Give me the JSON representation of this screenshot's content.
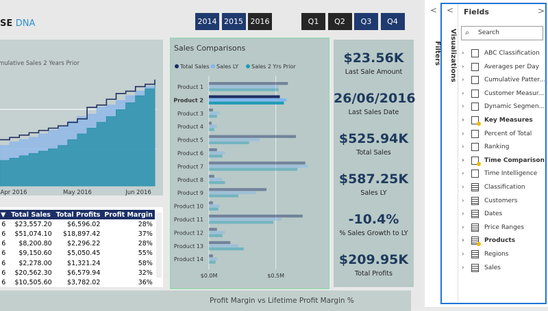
{
  "logo": {
    "prefix": "SE",
    "suffix": "DNA"
  },
  "year_buttons": [
    "2014",
    "2015",
    "2016"
  ],
  "quarter_buttons": [
    "Q1",
    "Q2",
    "Q3",
    "Q4"
  ],
  "chart_data": [
    {
      "type": "area",
      "title": "mulative Sales 2 Years Prior",
      "x_labels": [
        "Apr 2016",
        "May 2016",
        "Jun 2016"
      ],
      "ylim": [
        0,
        100
      ],
      "series": [
        {
          "color": "#8fb8e8",
          "values": [
            35,
            38,
            40,
            42,
            45,
            48,
            52,
            56,
            60,
            62,
            68,
            70,
            74,
            78,
            82,
            86,
            90
          ]
        },
        {
          "color": "#2e93ad",
          "values": [
            22,
            24,
            26,
            28,
            30,
            32,
            35,
            40,
            45,
            50,
            55,
            60,
            66,
            72,
            78,
            84,
            88
          ]
        },
        {
          "color": "#1f2f5e",
          "values": [
            40,
            42,
            44,
            46,
            48,
            50,
            52,
            55,
            58,
            68,
            70,
            75,
            80,
            82,
            86,
            88,
            92
          ]
        }
      ]
    },
    {
      "type": "bar",
      "title": "Sales Comparisons",
      "categories": [
        "Product 1",
        "Product 2",
        "Product 3",
        "Product 4",
        "Product 5",
        "Product 6",
        "Product 7",
        "Product 8",
        "Product 9",
        "Product 10",
        "Product 11",
        "Product 12",
        "Product 13",
        "Product 14"
      ],
      "highlight": 1,
      "series": [
        {
          "name": "Total Sales",
          "color": "#1c2f66",
          "values": [
            0.59,
            0.53,
            0.03,
            0.02,
            0.65,
            0.06,
            0.72,
            0.04,
            0.43,
            0.03,
            0.7,
            0.06,
            0.16,
            0.03
          ]
        },
        {
          "name": "Sales LY",
          "color": "#7fb6f0",
          "values": [
            0.52,
            0.58,
            0.08,
            0.06,
            0.38,
            0.12,
            0.74,
            0.1,
            0.35,
            0.08,
            0.54,
            0.12,
            0.22,
            0.06
          ]
        },
        {
          "name": "Sales 2 Yrs Prior",
          "color": "#1e9bb5",
          "values": [
            0.52,
            0.56,
            0.06,
            0.04,
            0.3,
            0.1,
            0.66,
            0.12,
            0.22,
            0.07,
            0.48,
            0.1,
            0.26,
            0.05
          ]
        }
      ],
      "xlim": [
        0,
        0.87
      ],
      "xticks": [
        {
          "value": 0,
          "label": "$0.0M"
        },
        {
          "value": 0.5,
          "label": "$0.5M"
        }
      ]
    }
  ],
  "table": {
    "columns": [
      "Total Sales",
      "Total Profits",
      "Profit Margin"
    ],
    "rows": [
      [
        "6",
        "$23,557.20",
        "$6,596.02",
        "28%"
      ],
      [
        "6",
        "$51,074.10",
        "$18,897.42",
        "37%"
      ],
      [
        "6",
        "$8,200.80",
        "$2,296.22",
        "28%"
      ],
      [
        "6",
        "$9,150.60",
        "$5,050.45",
        "55%"
      ],
      [
        "6",
        "$2,278.00",
        "$1,321.24",
        "58%"
      ],
      [
        "6",
        "$20,562.30",
        "$6,579.94",
        "32%"
      ],
      [
        "6",
        "$10,505.60",
        "$3,782.02",
        "36%"
      ]
    ]
  },
  "cards": [
    {
      "value": "$23.56K",
      "label": "Last Sale Amount"
    },
    {
      "value": "26/06/2016",
      "label": "Last Sales Date"
    },
    {
      "value": "$525.94K",
      "label": "Total Sales"
    },
    {
      "value": "$587.25K",
      "label": "Sales LY"
    },
    {
      "value": "-10.4%",
      "label": "% Sales Growth to LY"
    },
    {
      "value": "$209.95K",
      "label": "Total Profits"
    }
  ],
  "bottom_title": "Profit Margin vs Lifetime Profit Margin %",
  "pane": {
    "filters": "Filters",
    "visualizations": "Visualizations",
    "fields_title": "Fields",
    "search": "Search",
    "fields": [
      {
        "label": "ABC Classification",
        "kind": "measure"
      },
      {
        "label": "Averages per Day",
        "kind": "measure"
      },
      {
        "label": "Cumulative Patter...",
        "kind": "measure"
      },
      {
        "label": "Customer Measur...",
        "kind": "measure"
      },
      {
        "label": "Dynamic Segmen...",
        "kind": "measure"
      },
      {
        "label": "Key Measures",
        "kind": "measure",
        "bold": true
      },
      {
        "label": "Percent of Total",
        "kind": "measure"
      },
      {
        "label": "Ranking",
        "kind": "measure"
      },
      {
        "label": "Time Comparison",
        "kind": "measure",
        "bold": true
      },
      {
        "label": "Time Intelligence",
        "kind": "measure"
      },
      {
        "label": "Classification",
        "kind": "table"
      },
      {
        "label": "Customers",
        "kind": "table"
      },
      {
        "label": "Dates",
        "kind": "table"
      },
      {
        "label": "Price Ranges",
        "kind": "table"
      },
      {
        "label": "Products",
        "kind": "table",
        "bold": true
      },
      {
        "label": "Regions",
        "kind": "table"
      },
      {
        "label": "Sales",
        "kind": "table"
      }
    ]
  }
}
